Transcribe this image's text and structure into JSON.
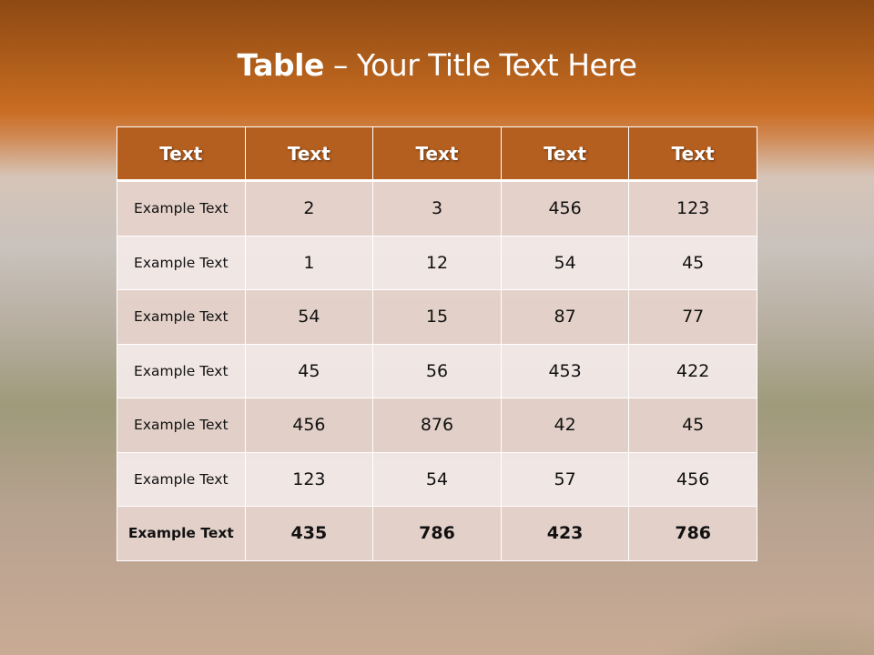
{
  "title": {
    "bold": "Table",
    "rest": " – Your Title Text Here"
  },
  "table": {
    "headers": [
      "Text",
      "Text",
      "Text",
      "Text",
      "Text"
    ],
    "rows": [
      [
        "Example Text",
        "2",
        "3",
        "456",
        "123"
      ],
      [
        "Example Text",
        "1",
        "12",
        "54",
        "45"
      ],
      [
        "Example Text",
        "54",
        "15",
        "87",
        "77"
      ],
      [
        "Example Text",
        "45",
        "56",
        "453",
        "422"
      ],
      [
        "Example Text",
        "456",
        "876",
        "42",
        "45"
      ],
      [
        "Example Text",
        "123",
        "54",
        "57",
        "456"
      ],
      [
        "Example Text",
        "435",
        "786",
        "423",
        "786"
      ]
    ]
  },
  "colors": {
    "header": "#b45f1f",
    "row_dark": "#e4d2ca",
    "row_light": "#f2e8e6"
  }
}
